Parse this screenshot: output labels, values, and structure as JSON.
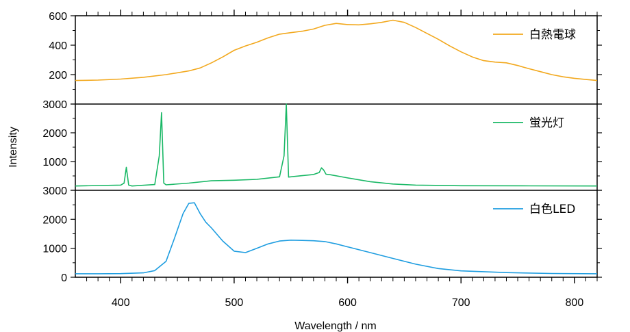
{
  "chart_data": {
    "type": "line",
    "xlabel": "Wavelength / nm",
    "ylabel": "Intensity",
    "xlim": [
      360,
      820
    ],
    "x_ticks": [
      400,
      500,
      600,
      700,
      800
    ],
    "panels": [
      {
        "series": {
          "name": "白熱電球",
          "color": "#f2a81d",
          "x": [
            360,
            380,
            400,
            420,
            440,
            460,
            470,
            480,
            490,
            500,
            510,
            520,
            530,
            540,
            550,
            560,
            570,
            580,
            590,
            600,
            610,
            620,
            630,
            640,
            650,
            660,
            670,
            680,
            690,
            700,
            710,
            720,
            730,
            740,
            750,
            760,
            770,
            780,
            790,
            800,
            810,
            820
          ],
          "y": [
            160,
            163,
            170,
            182,
            200,
            225,
            245,
            280,
            320,
            365,
            395,
            420,
            450,
            475,
            485,
            495,
            510,
            535,
            548,
            540,
            538,
            545,
            555,
            570,
            555,
            520,
            480,
            440,
            395,
            355,
            320,
            295,
            285,
            280,
            262,
            240,
            220,
            200,
            185,
            175,
            167,
            160
          ]
        },
        "ylim": [
          0,
          600
        ],
        "y_ticks": [
          200,
          400,
          600
        ]
      },
      {
        "series": {
          "name": "蛍光灯",
          "color": "#1ab866",
          "x": [
            360,
            400,
            403,
            405,
            407,
            410,
            430,
            434,
            436,
            438,
            440,
            460,
            480,
            500,
            520,
            540,
            544,
            546,
            548,
            550,
            560,
            570,
            575,
            577,
            579,
            581,
            585,
            600,
            620,
            640,
            660,
            700,
            760,
            820
          ],
          "y": [
            150,
            180,
            250,
            800,
            180,
            150,
            200,
            1200,
            2700,
            250,
            190,
            250,
            330,
            350,
            380,
            470,
            1200,
            3000,
            460,
            470,
            510,
            550,
            620,
            780,
            700,
            560,
            540,
            430,
            300,
            220,
            180,
            160,
            155,
            150
          ]
        },
        "ylim": [
          0,
          3000
        ],
        "y_ticks": [
          1000,
          2000,
          3000
        ]
      },
      {
        "series": {
          "name": "白色LED",
          "color": "#1e9de0",
          "x": [
            360,
            380,
            400,
            420,
            430,
            440,
            447,
            455,
            460,
            465,
            470,
            475,
            480,
            490,
            500,
            510,
            520,
            530,
            540,
            550,
            560,
            570,
            580,
            590,
            600,
            620,
            640,
            660,
            680,
            700,
            740,
            780,
            820
          ],
          "y": [
            120,
            120,
            125,
            150,
            230,
            550,
            1300,
            2200,
            2550,
            2570,
            2200,
            1900,
            1700,
            1250,
            900,
            850,
            1000,
            1150,
            1250,
            1280,
            1270,
            1260,
            1230,
            1150,
            1050,
            850,
            650,
            450,
            300,
            220,
            160,
            130,
            120
          ]
        },
        "ylim": [
          0,
          3000
        ],
        "y_ticks": [
          0,
          1000,
          2000,
          3000
        ]
      }
    ],
    "legend_placement": "top-right of each panel",
    "grid": false
  }
}
